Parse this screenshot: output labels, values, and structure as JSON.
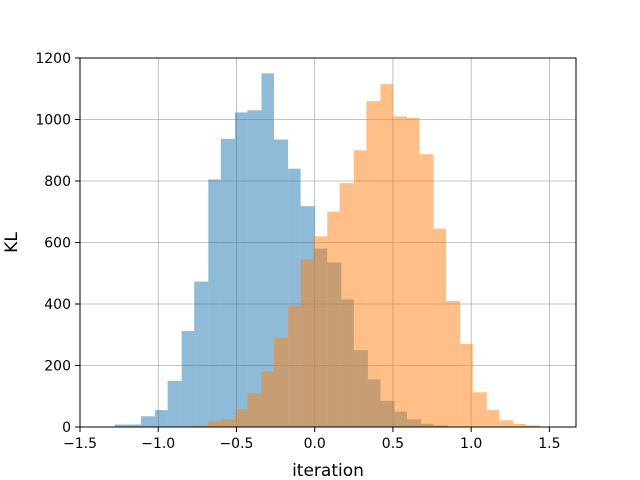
{
  "chart_data": {
    "type": "bar",
    "title": "",
    "xlabel": "iteration",
    "ylabel": "KL",
    "xlim": [
      -1.5,
      1.67
    ],
    "ylim": [
      0,
      1200
    ],
    "grid": true,
    "legend": "none",
    "x_ticks": [
      -1.5,
      -1.0,
      -0.5,
      0.0,
      0.5,
      1.0,
      1.5
    ],
    "x_tick_labels": [
      "−1.5",
      "−1.0",
      "−0.5",
      "0.0",
      "0.5",
      "1.0",
      "1.5"
    ],
    "y_ticks": [
      0,
      200,
      400,
      600,
      800,
      1000,
      1200
    ],
    "y_tick_labels": [
      "0",
      "200",
      "400",
      "600",
      "800",
      "1000",
      "1200"
    ],
    "series": [
      {
        "color": "#1f77b4",
        "opacity": 0.5,
        "bins": [
          {
            "x0": -1.28,
            "x1": -1.19,
            "value": 8
          },
          {
            "x0": -1.19,
            "x1": -1.11,
            "value": 8
          },
          {
            "x0": -1.11,
            "x1": -1.02,
            "value": 35
          },
          {
            "x0": -1.02,
            "x1": -0.94,
            "value": 55
          },
          {
            "x0": -0.94,
            "x1": -0.85,
            "value": 150
          },
          {
            "x0": -0.85,
            "x1": -0.77,
            "value": 312
          },
          {
            "x0": -0.77,
            "x1": -0.68,
            "value": 473
          },
          {
            "x0": -0.68,
            "x1": -0.6,
            "value": 805
          },
          {
            "x0": -0.6,
            "x1": -0.51,
            "value": 937
          },
          {
            "x0": -0.51,
            "x1": -0.43,
            "value": 1023
          },
          {
            "x0": -0.43,
            "x1": -0.34,
            "value": 1030
          },
          {
            "x0": -0.34,
            "x1": -0.26,
            "value": 1150
          },
          {
            "x0": -0.26,
            "x1": -0.17,
            "value": 935
          },
          {
            "x0": -0.17,
            "x1": -0.09,
            "value": 840
          },
          {
            "x0": -0.09,
            "x1": 0.0,
            "value": 718
          },
          {
            "x0": 0.0,
            "x1": 0.08,
            "value": 580
          },
          {
            "x0": 0.08,
            "x1": 0.17,
            "value": 535
          },
          {
            "x0": 0.17,
            "x1": 0.25,
            "value": 415
          },
          {
            "x0": 0.25,
            "x1": 0.34,
            "value": 250
          },
          {
            "x0": 0.34,
            "x1": 0.42,
            "value": 155
          },
          {
            "x0": 0.42,
            "x1": 0.51,
            "value": 85
          },
          {
            "x0": 0.51,
            "x1": 0.59,
            "value": 50
          },
          {
            "x0": 0.59,
            "x1": 0.68,
            "value": 25
          },
          {
            "x0": 0.68,
            "x1": 0.76,
            "value": 10
          },
          {
            "x0": 0.76,
            "x1": 0.85,
            "value": 5
          }
        ]
      },
      {
        "color": "#ff7f0e",
        "opacity": 0.5,
        "bins": [
          {
            "x0": -0.77,
            "x1": -0.68,
            "value": 5
          },
          {
            "x0": -0.68,
            "x1": -0.6,
            "value": 20
          },
          {
            "x0": -0.6,
            "x1": -0.51,
            "value": 25
          },
          {
            "x0": -0.51,
            "x1": -0.43,
            "value": 58
          },
          {
            "x0": -0.43,
            "x1": -0.34,
            "value": 110
          },
          {
            "x0": -0.34,
            "x1": -0.26,
            "value": 180
          },
          {
            "x0": -0.26,
            "x1": -0.17,
            "value": 290
          },
          {
            "x0": -0.17,
            "x1": -0.09,
            "value": 395
          },
          {
            "x0": -0.09,
            "x1": -0.01,
            "value": 545
          },
          {
            "x0": -0.01,
            "x1": 0.08,
            "value": 620
          },
          {
            "x0": 0.08,
            "x1": 0.16,
            "value": 700
          },
          {
            "x0": 0.16,
            "x1": 0.25,
            "value": 793
          },
          {
            "x0": 0.25,
            "x1": 0.33,
            "value": 900
          },
          {
            "x0": 0.33,
            "x1": 0.42,
            "value": 1060
          },
          {
            "x0": 0.42,
            "x1": 0.5,
            "value": 1115
          },
          {
            "x0": 0.5,
            "x1": 0.59,
            "value": 1010
          },
          {
            "x0": 0.59,
            "x1": 0.67,
            "value": 1005
          },
          {
            "x0": 0.67,
            "x1": 0.76,
            "value": 887
          },
          {
            "x0": 0.76,
            "x1": 0.84,
            "value": 645
          },
          {
            "x0": 0.84,
            "x1": 0.93,
            "value": 410
          },
          {
            "x0": 0.93,
            "x1": 1.01,
            "value": 270
          },
          {
            "x0": 1.01,
            "x1": 1.1,
            "value": 113
          },
          {
            "x0": 1.1,
            "x1": 1.18,
            "value": 55
          },
          {
            "x0": 1.18,
            "x1": 1.27,
            "value": 22
          },
          {
            "x0": 1.27,
            "x1": 1.35,
            "value": 10
          },
          {
            "x0": 1.35,
            "x1": 1.44,
            "value": 5
          }
        ]
      }
    ]
  }
}
